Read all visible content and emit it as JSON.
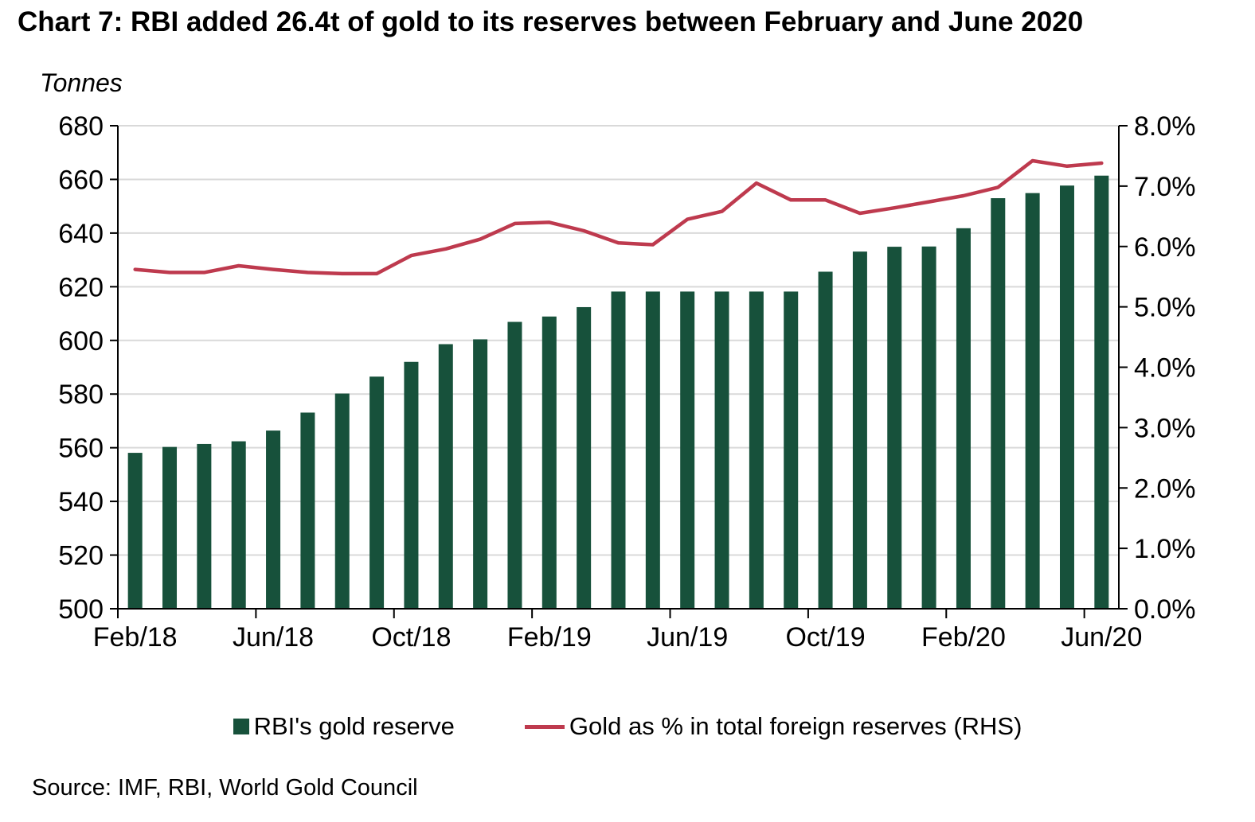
{
  "title": "Chart 7: RBI added 26.4t of gold to its reserves between February and June 2020",
  "units_label": "Tonnes",
  "source": "Source: IMF, RBI, World Gold Council",
  "legend": {
    "bar_label": "RBI's gold reserve",
    "line_label": "Gold as % in total foreign reserves (RHS)"
  },
  "colors": {
    "bar": "#17513B",
    "line": "#BE3A4E",
    "gridline": "#D9D9D9",
    "axis": "#000000",
    "text": "#000000"
  },
  "chart_data": {
    "type": "bar",
    "subtype": "bar+line dual axis",
    "title": "Chart 7: RBI added 26.4t of gold to its reserves between February and June 2020",
    "xlabel": "",
    "ylabel_left": "Tonnes",
    "ylabel_right": "Gold as % in total foreign reserves",
    "grid": true,
    "legend_position": "bottom",
    "categories": [
      "Feb/18",
      "Mar/18",
      "Apr/18",
      "May/18",
      "Jun/18",
      "Jul/18",
      "Aug/18",
      "Sep/18",
      "Oct/18",
      "Nov/18",
      "Dec/18",
      "Jan/19",
      "Feb/19",
      "Mar/19",
      "Apr/19",
      "May/19",
      "Jun/19",
      "Jul/19",
      "Aug/19",
      "Sep/19",
      "Oct/19",
      "Nov/19",
      "Dec/19",
      "Jan/20",
      "Feb/20",
      "Mar/20",
      "Apr/20",
      "May/20",
      "Jun/20"
    ],
    "x_tick_labels": [
      "Feb/18",
      "Jun/18",
      "Oct/18",
      "Feb/19",
      "Jun/19",
      "Oct/19",
      "Feb/20",
      "Jun/20"
    ],
    "x_tick_indices": [
      0,
      4,
      8,
      12,
      16,
      20,
      24,
      28
    ],
    "series": [
      {
        "name": "RBI's gold reserve",
        "type": "bar",
        "axis": "left",
        "unit": "tonnes",
        "values": [
          558.1,
          560.3,
          561.4,
          562.4,
          566.4,
          573.1,
          580.2,
          586.5,
          592.0,
          598.6,
          600.4,
          606.9,
          608.9,
          612.4,
          618.2,
          618.2,
          618.2,
          618.2,
          618.2,
          618.2,
          625.6,
          633.1,
          634.9,
          635.0,
          641.8,
          653.0,
          654.9,
          657.7,
          661.4
        ]
      },
      {
        "name": "Gold as % in total foreign reserves (RHS)",
        "type": "line",
        "axis": "right",
        "unit": "percent",
        "values": [
          5.62,
          5.57,
          5.57,
          5.68,
          5.62,
          5.57,
          5.55,
          5.55,
          5.85,
          5.96,
          6.12,
          6.38,
          6.4,
          6.26,
          6.06,
          6.03,
          6.45,
          6.58,
          7.05,
          6.77,
          6.77,
          6.55,
          6.64,
          6.74,
          6.84,
          6.98,
          7.42,
          7.33,
          7.38
        ]
      }
    ],
    "y_left": {
      "min": 500,
      "max": 680,
      "step": 20,
      "tick_labels": [
        "500",
        "520",
        "540",
        "560",
        "580",
        "600",
        "620",
        "640",
        "660",
        "680"
      ]
    },
    "y_right": {
      "min": 0,
      "max": 8,
      "step": 1,
      "tick_labels": [
        "0.0%",
        "1.0%",
        "2.0%",
        "3.0%",
        "4.0%",
        "5.0%",
        "6.0%",
        "7.0%",
        "8.0%"
      ]
    }
  }
}
